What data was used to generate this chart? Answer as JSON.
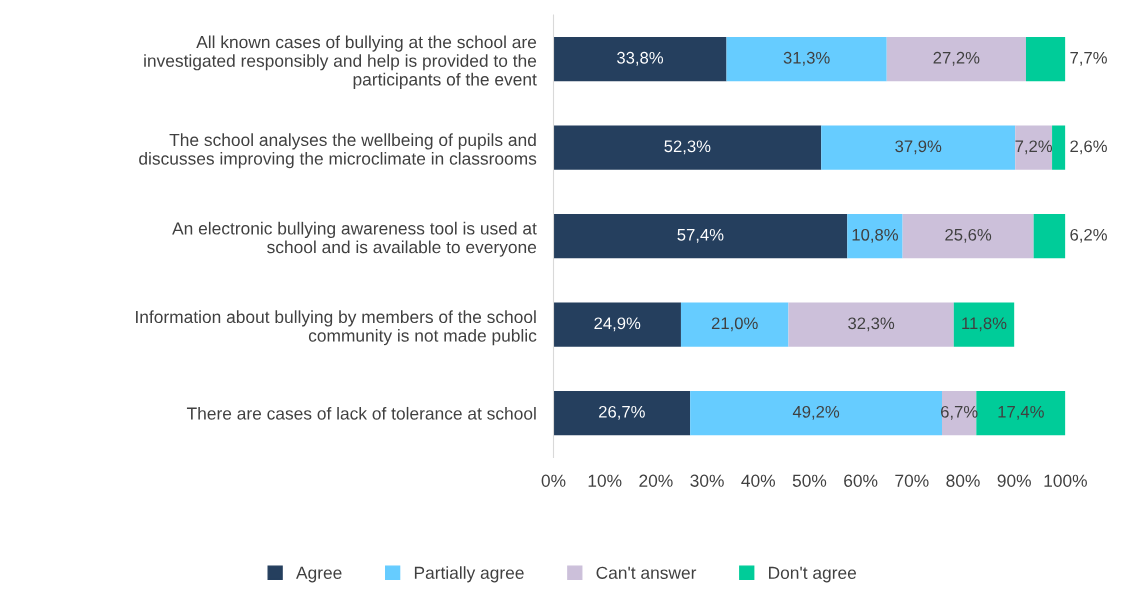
{
  "chart_data": {
    "type": "bar",
    "orientation": "horizontal",
    "stacked": true,
    "categories": [
      "All known cases of bullying at the school are\ninvestigated responsibly and help is provided to the\nparticipants of the event",
      "The school analyses the wellbeing of pupils and\ndiscusses improving the microclimate in classrooms",
      "An electronic bullying awareness tool is used at\nschool and is available to everyone",
      "Information about bullying by members of the school\ncommunity is not made public",
      "There are cases of lack of tolerance at school"
    ],
    "series": [
      {
        "name": "Agree",
        "color": "#253f5e",
        "values": [
          33.8,
          52.3,
          57.4,
          24.9,
          26.7
        ],
        "value_labels": [
          "33,8%",
          "52,3%",
          "57,4%",
          "24,9%",
          "26,7%"
        ]
      },
      {
        "name": "Partially agree",
        "color": "#66ccff",
        "values": [
          31.3,
          37.9,
          10.8,
          21.0,
          49.2
        ],
        "value_labels": [
          "31,3%",
          "37,9%",
          "10,8%",
          "21,0%",
          "49,2%"
        ]
      },
      {
        "name": "Can't answer",
        "color": "#ccc0da",
        "values": [
          27.2,
          7.2,
          25.6,
          32.3,
          6.7
        ],
        "value_labels": [
          "27,2%",
          "7,2%",
          "25,6%",
          "32,3%",
          "6,7%"
        ]
      },
      {
        "name": "Don't agree",
        "color": "#00cc99",
        "values": [
          7.7,
          2.6,
          6.2,
          11.8,
          17.4
        ],
        "value_labels": [
          "7,7%",
          "2,6%",
          "6,2%",
          "11,8%",
          "17,4%"
        ]
      }
    ],
    "xlim": [
      0,
      100
    ],
    "xticks": [
      {
        "value": 0,
        "label": "0%"
      },
      {
        "value": 10,
        "label": "10%"
      },
      {
        "value": 20,
        "label": "20%"
      },
      {
        "value": 30,
        "label": "30%"
      },
      {
        "value": 40,
        "label": "40%"
      },
      {
        "value": 50,
        "label": "50%"
      },
      {
        "value": 60,
        "label": "60%"
      },
      {
        "value": 70,
        "label": "70%"
      },
      {
        "value": 80,
        "label": "80%"
      },
      {
        "value": 90,
        "label": "90%"
      },
      {
        "value": 100,
        "label": "100%"
      }
    ],
    "grid": false,
    "legend": "bottom"
  }
}
